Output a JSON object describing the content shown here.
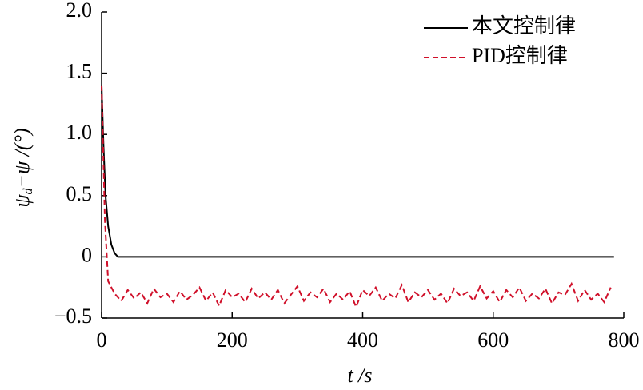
{
  "chart_data": {
    "type": "line",
    "x_label": "t /s",
    "y_label": [
      "ψ",
      "d",
      "−ψ /(°)"
    ],
    "xlim": [
      0,
      800
    ],
    "xticks": [
      0,
      200,
      400,
      600,
      800
    ],
    "ylim": [
      -0.5,
      2.0
    ],
    "yticks": [
      {
        "value": -0.5,
        "label": "−0.5"
      },
      0,
      {
        "value": 0.5,
        "label": "0.5"
      },
      {
        "value": 1.0,
        "label": "1.0"
      },
      {
        "value": 1.5,
        "label": "1.5"
      },
      {
        "value": 2.0,
        "label": "2.0"
      }
    ],
    "legend": "upper right",
    "series": [
      {
        "name": "本文控制律",
        "color": "#000000",
        "dash": "solid",
        "x": [
          0,
          3,
          6,
          10,
          15,
          20,
          25,
          785
        ],
        "values": [
          1.4,
          0.9,
          0.5,
          0.25,
          0.1,
          0.03,
          0,
          0
        ]
      },
      {
        "name": "PID控制律",
        "color": "#d0102a",
        "dash": "dashed",
        "x": [
          0,
          5,
          10,
          20,
          30,
          40,
          50,
          60,
          70,
          80,
          90,
          100,
          110,
          120,
          130,
          140,
          150,
          160,
          170,
          180,
          190,
          200,
          210,
          220,
          230,
          240,
          250,
          260,
          270,
          280,
          290,
          300,
          310,
          320,
          330,
          340,
          350,
          360,
          370,
          380,
          390,
          400,
          410,
          420,
          430,
          440,
          450,
          460,
          470,
          480,
          490,
          500,
          510,
          520,
          530,
          540,
          550,
          560,
          570,
          580,
          590,
          600,
          610,
          620,
          630,
          640,
          650,
          660,
          670,
          680,
          690,
          700,
          710,
          720,
          730,
          740,
          750,
          760,
          770,
          780
        ],
        "values": [
          1.4,
          0.3,
          -0.2,
          -0.3,
          -0.36,
          -0.27,
          -0.34,
          -0.29,
          -0.38,
          -0.26,
          -0.33,
          -0.3,
          -0.37,
          -0.28,
          -0.35,
          -0.31,
          -0.25,
          -0.36,
          -0.29,
          -0.4,
          -0.27,
          -0.33,
          -0.3,
          -0.37,
          -0.26,
          -0.34,
          -0.29,
          -0.35,
          -0.27,
          -0.38,
          -0.31,
          -0.24,
          -0.36,
          -0.29,
          -0.33,
          -0.26,
          -0.37,
          -0.3,
          -0.35,
          -0.28,
          -0.41,
          -0.27,
          -0.32,
          -0.25,
          -0.36,
          -0.3,
          -0.34,
          -0.23,
          -0.37,
          -0.29,
          -0.33,
          -0.27,
          -0.35,
          -0.3,
          -0.38,
          -0.26,
          -0.32,
          -0.29,
          -0.36,
          -0.24,
          -0.34,
          -0.28,
          -0.37,
          -0.27,
          -0.33,
          -0.25,
          -0.36,
          -0.3,
          -0.34,
          -0.26,
          -0.38,
          -0.29,
          -0.31,
          -0.22,
          -0.36,
          -0.27,
          -0.35,
          -0.3,
          -0.37,
          -0.25
        ]
      }
    ]
  }
}
